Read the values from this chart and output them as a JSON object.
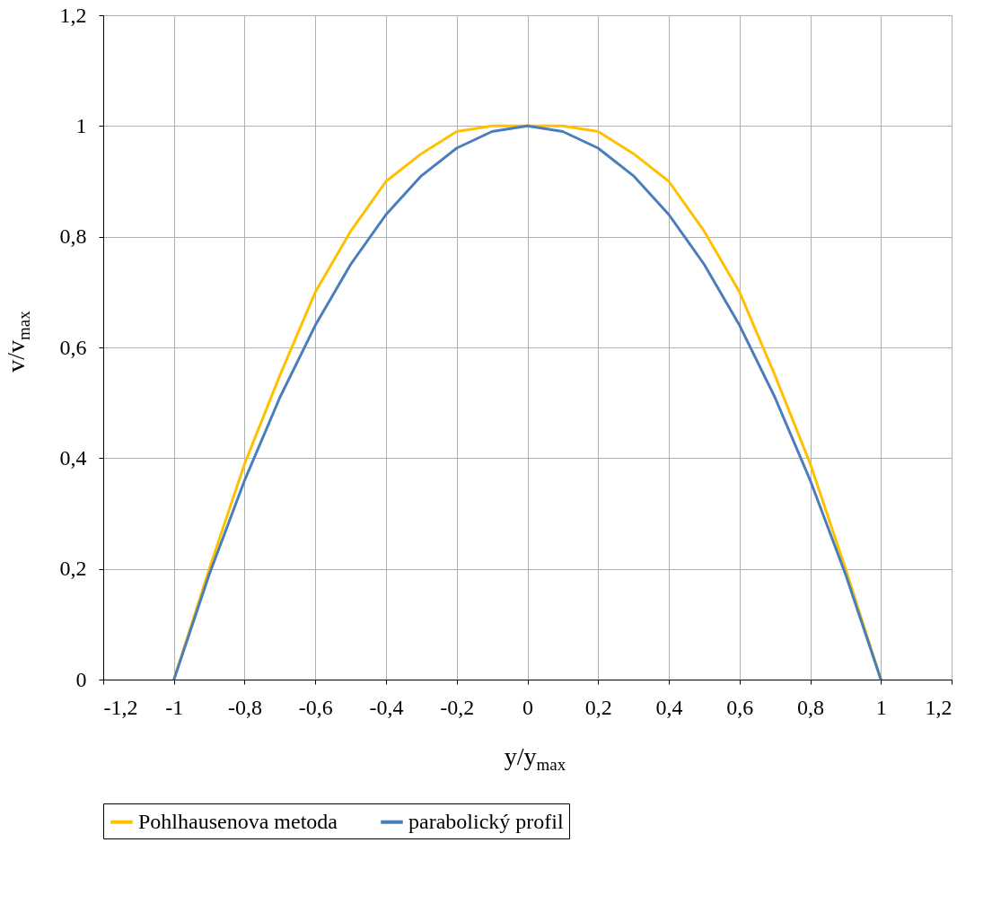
{
  "chart_data": {
    "type": "line",
    "xlabel": "y/y$_{max}$",
    "ylabel": "v/v$_{max}$",
    "x": [
      -1,
      -0.9,
      -0.8,
      -0.7,
      -0.6,
      -0.5,
      -0.4,
      -0.3,
      -0.2,
      -0.1,
      0,
      0.1,
      0.2,
      0.3,
      0.4,
      0.5,
      0.6,
      0.7,
      0.8,
      0.9,
      1
    ],
    "series": [
      {
        "name": "Pohlhausenova metoda",
        "color": "#ffc000",
        "values": [
          0,
          0.2,
          0.39,
          0.55,
          0.7,
          0.81,
          0.9,
          0.95,
          0.99,
          1,
          1,
          1,
          0.99,
          0.95,
          0.9,
          0.81,
          0.7,
          0.55,
          0.39,
          0.2,
          0
        ]
      },
      {
        "name": "parabolický profil",
        "color": "#4a7ebb",
        "values": [
          0,
          0.19,
          0.36,
          0.51,
          0.64,
          0.75,
          0.84,
          0.91,
          0.96,
          0.99,
          1,
          0.99,
          0.96,
          0.91,
          0.84,
          0.75,
          0.64,
          0.51,
          0.36,
          0.19,
          0
        ]
      }
    ],
    "xlim": [
      -1.2,
      1.2
    ],
    "ylim": [
      0,
      1.2
    ],
    "xticks": [
      {
        "value": -1.2,
        "label": "-1,2"
      },
      {
        "value": -1,
        "label": "-1"
      },
      {
        "value": -0.8,
        "label": "-0,8"
      },
      {
        "value": -0.6,
        "label": "-0,6"
      },
      {
        "value": -0.4,
        "label": "-0,4"
      },
      {
        "value": -0.2,
        "label": "-0,2"
      },
      0,
      {
        "value": 0.2,
        "label": "0,2"
      },
      {
        "value": 0.4,
        "label": "0,4"
      },
      {
        "value": 0.6,
        "label": "0,6"
      },
      {
        "value": 0.8,
        "label": "0,8"
      },
      1,
      {
        "value": 1.2,
        "label": "1,2"
      }
    ],
    "yticks": [
      0,
      {
        "value": 0.2,
        "label": "0,2"
      },
      {
        "value": 0.4,
        "label": "0,4"
      },
      {
        "value": 0.6,
        "label": "0,6"
      },
      {
        "value": 0.8,
        "label": "0,8"
      },
      1,
      {
        "value": 1.2,
        "label": "1,2"
      }
    ],
    "grid": true,
    "legend": "bottom",
    "marker": "none",
    "line_style": "solid"
  }
}
